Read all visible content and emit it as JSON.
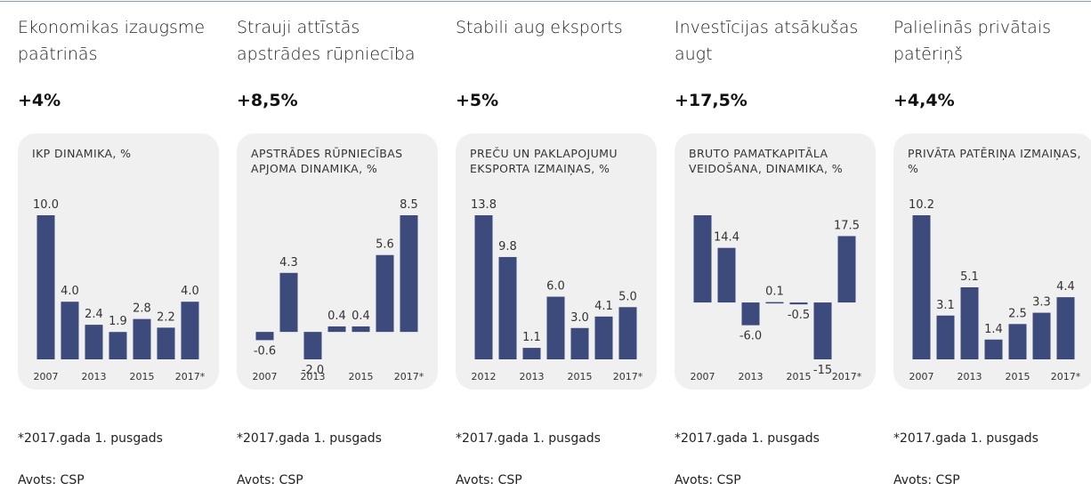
{
  "panels": [
    {
      "heading": "Ekonomikas izaugsme paātrinās",
      "highlight": "+4%",
      "footnote": "*2017.gada 1. pusgads",
      "source": "Avots: CSP"
    },
    {
      "heading": "Strauji attīstās apstrādes rūpniecība",
      "highlight": "+8,5%",
      "footnote": "*2017.gada 1. pusgads",
      "source": "Avots: CSP"
    },
    {
      "heading": "Stabili aug eksports",
      "highlight": "+5%",
      "footnote": "*2017.gada 1. pusgads",
      "source": "Avots: CSP"
    },
    {
      "heading": "Investīcijas atsākušas augt",
      "highlight": "+17,5%",
      "footnote": "*2017.gada 1. pusgads",
      "source": "Avots: CSP"
    },
    {
      "heading": "Palielinās privātais patēriņš",
      "highlight": "+4,4%",
      "footnote": "*2017.gada 1. pusgads",
      "source": "Avots: CSP"
    }
  ],
  "chart_data": [
    {
      "type": "bar",
      "title": "IKP DINAMIKA, %",
      "color": "#3d4a7c",
      "categories": [
        "2007",
        null,
        "2013",
        null,
        "2015",
        null,
        "2017*"
      ],
      "values": [
        10.0,
        4.0,
        2.4,
        1.9,
        2.8,
        2.2,
        4.0
      ],
      "value_labels": [
        "10.0",
        "4.0",
        "2.4",
        "1.9",
        "2.8",
        "2.2",
        "4.0"
      ]
    },
    {
      "type": "bar",
      "title": "APSTRĀDES RŪPNIECĪBAS APJOMA DINAMIKA, %",
      "color": "#3d4a7c",
      "categories": [
        "2007",
        null,
        "2013",
        null,
        "2015",
        null,
        "2017*"
      ],
      "values": [
        -0.6,
        4.3,
        -2.0,
        0.4,
        0.4,
        5.6,
        8.5
      ],
      "value_labels": [
        "-0.6",
        "4.3",
        "-2.0",
        "0.4",
        "0.4",
        "5.6",
        "8.5"
      ]
    },
    {
      "type": "bar",
      "title": "PREČU UN PAKLAPOJUMU EKSPORTA IZMAIŅAS, %",
      "color": "#3d4a7c",
      "categories": [
        "2012",
        null,
        "2013",
        null,
        "2015",
        null,
        "2017*"
      ],
      "values": [
        13.8,
        9.8,
        1.1,
        6.0,
        3.0,
        4.1,
        5.0
      ],
      "value_labels": [
        "13.8",
        "9.8",
        "1.1",
        "6.0",
        "3.0",
        "4.1",
        "5.0"
      ]
    },
    {
      "type": "bar",
      "title": "BRUTO PAMATKAPITĀLA VEIDOŠANA, DINAMIKA, %",
      "color": "#3d4a7c",
      "categories": [
        "2007",
        null,
        "2013",
        null,
        "2015",
        null,
        "2017*"
      ],
      "values": [
        23,
        14.4,
        -6.0,
        0.1,
        -0.5,
        -15,
        17.5
      ],
      "value_labels": [
        null,
        "14.4",
        "-6.0",
        "0.1",
        "-0.5",
        "-15",
        "17.5"
      ]
    },
    {
      "type": "bar",
      "title": "PRIVĀTA PATĒRIŅA IZMAIŅAS, %",
      "color": "#3d4a7c",
      "categories": [
        "2007",
        null,
        "2013",
        null,
        "2015",
        null,
        "2017*"
      ],
      "values": [
        10.2,
        3.1,
        5.1,
        1.4,
        2.5,
        3.3,
        4.4
      ],
      "value_labels": [
        "10.2",
        "3.1",
        "5.1",
        "1.4",
        "2.5",
        "3.3",
        "4.4"
      ]
    }
  ]
}
